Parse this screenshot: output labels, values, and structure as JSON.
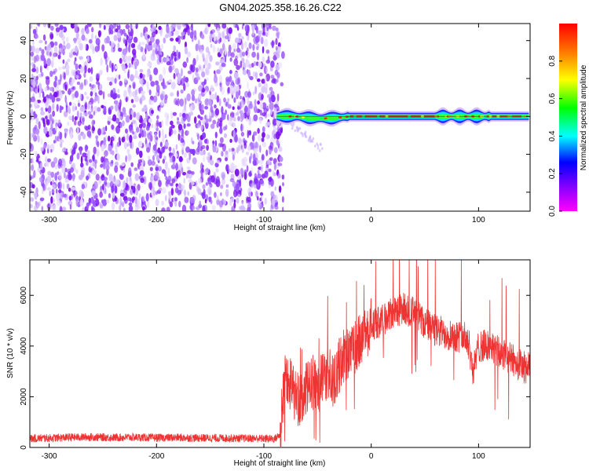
{
  "title": "GN04.2025.358.16.26.C22",
  "spectrogram": {
    "type": "heatmap",
    "xlabel": "Height of straight line (km)",
    "ylabel": "Frequency (Hz)",
    "xlim": [
      -318,
      148
    ],
    "ylim": [
      -50,
      49
    ],
    "xticks": [
      -300,
      -200,
      -100,
      0,
      100
    ],
    "yticks": [
      -40,
      -20,
      0,
      20,
      40
    ],
    "noise_region_x": [
      -318,
      -82
    ],
    "signal_band": {
      "x_start": -88,
      "x_end": 148,
      "frequency": 0
    }
  },
  "colorbar": {
    "label": "Normalized spectral amplitude",
    "range": [
      0,
      1
    ],
    "ticks": [
      "0.0",
      "0.2",
      "0.4",
      "0.6",
      "0.8"
    ],
    "colors": [
      "#ff00ff",
      "#7f00ff",
      "#0000ff",
      "#00ffff",
      "#00ff00",
      "#ffff00",
      "#ff8000",
      "#ff0000"
    ]
  },
  "chart_data": {
    "type": "line",
    "xlabel": "Height of straight line (km)",
    "ylabel": "SNR (10 * v/v)",
    "xlim": [
      -318,
      148
    ],
    "ylim": [
      0,
      7400
    ],
    "xticks": [
      -300,
      -200,
      -100,
      0,
      100
    ],
    "yticks": [
      0,
      2000,
      4000,
      6000
    ],
    "line_color": "#ee3333",
    "series": [
      {
        "x": [
          -318,
          -300,
          -280,
          -260,
          -240,
          -220,
          -200,
          -180,
          -160,
          -140,
          -120,
          -100,
          -90,
          -85,
          -80,
          -75,
          -70,
          -65,
          -60,
          -55,
          -50,
          -45,
          -40,
          -35,
          -30,
          -25,
          -20,
          -15,
          -10,
          -5,
          0,
          10,
          20,
          30,
          40,
          50,
          60,
          70,
          80,
          90,
          95,
          100,
          110,
          120,
          130,
          140,
          148
        ],
        "y": [
          350,
          370,
          400,
          410,
          390,
          400,
          380,
          390,
          370,
          370,
          360,
          350,
          340,
          500,
          3000,
          2500,
          2000,
          1800,
          2300,
          2600,
          2400,
          2700,
          3000,
          2500,
          3200,
          3700,
          3800,
          3900,
          4200,
          4600,
          4800,
          5000,
          5300,
          5500,
          5300,
          4900,
          4600,
          4500,
          4400,
          4300,
          3000,
          4000,
          4000,
          3700,
          3500,
          3200,
          3100
        ]
      }
    ]
  }
}
